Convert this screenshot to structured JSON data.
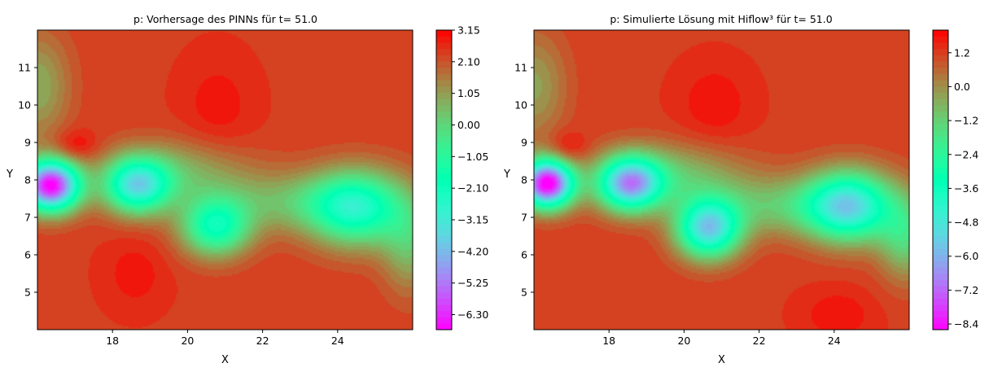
{
  "chart_data": [
    {
      "type": "heatmap",
      "title": "p: Vorhersage des PINNs für t= 51.0",
      "xlabel": "X",
      "ylabel": "Y",
      "xlim": [
        16.0,
        26.0
      ],
      "ylim": [
        4.0,
        12.0
      ],
      "x_ticks": [
        "18",
        "20",
        "22",
        "24"
      ],
      "x_tick_values": [
        18,
        20,
        22,
        24
      ],
      "y_ticks": [
        "5",
        "6",
        "7",
        "8",
        "9",
        "10",
        "11"
      ],
      "y_tick_values": [
        5,
        6,
        7,
        8,
        9,
        10,
        11
      ],
      "colormap": "rainbow",
      "colorbar": {
        "vmin": -6.8,
        "vmax": 3.15,
        "ticks": [
          "3.15",
          "2.10",
          "1.05",
          "0.00",
          "−1.05",
          "−2.10",
          "−3.15",
          "−4.20",
          "−5.25",
          "−6.30"
        ],
        "tick_values": [
          3.15,
          2.1,
          1.05,
          0.0,
          -1.05,
          -2.1,
          -3.15,
          -4.2,
          -5.25,
          -6.3
        ]
      },
      "background_value": 2.4,
      "features": [
        {
          "x": 16.35,
          "y": 7.85,
          "sx": 0.55,
          "sy": 0.48,
          "amp": -9.2
        },
        {
          "x": 18.65,
          "y": 7.85,
          "sx": 0.62,
          "sy": 0.52,
          "amp": -5.4
        },
        {
          "x": 20.75,
          "y": 6.75,
          "sx": 0.65,
          "sy": 0.55,
          "amp": -4.2
        },
        {
          "x": 24.5,
          "y": 7.25,
          "sx": 0.9,
          "sy": 0.7,
          "amp": -4.5
        },
        {
          "x": 25.9,
          "y": 6.3,
          "sx": 0.5,
          "sy": 0.9,
          "amp": -1.8
        },
        {
          "x": 16.0,
          "y": 10.5,
          "sx": 0.6,
          "sy": 1.0,
          "amp": -1.6
        },
        {
          "x": 17.0,
          "y": 8.9,
          "sx": 0.4,
          "sy": 0.3,
          "amp": 0.9
        },
        {
          "x": 20.8,
          "y": 9.9,
          "sx": 0.7,
          "sy": 1.0,
          "amp": 0.5
        },
        {
          "x": 18.6,
          "y": 5.5,
          "sx": 0.6,
          "sy": 0.7,
          "amp": 0.5
        },
        {
          "x": 19.8,
          "y": 8.2,
          "sx": 1.3,
          "sy": 0.6,
          "amp": -1.6
        },
        {
          "x": 22.7,
          "y": 7.4,
          "sx": 1.5,
          "sy": 0.55,
          "amp": -1.6
        }
      ]
    },
    {
      "type": "heatmap",
      "title": "p: Simulierte Lösung mit Hiflow³ für t= 51.0",
      "xlabel": "X",
      "ylabel": "Y",
      "xlim": [
        16.0,
        26.0
      ],
      "ylim": [
        4.0,
        12.0
      ],
      "x_ticks": [
        "18",
        "20",
        "22",
        "24"
      ],
      "x_tick_values": [
        18,
        20,
        22,
        24
      ],
      "y_ticks": [
        "5",
        "6",
        "7",
        "8",
        "9",
        "10",
        "11"
      ],
      "y_tick_values": [
        5,
        6,
        7,
        8,
        9,
        10,
        11
      ],
      "colormap": "rainbow",
      "colorbar": {
        "vmin": -8.6,
        "vmax": 2.0,
        "ticks": [
          "1.2",
          "0.0",
          "−1.2",
          "−2.4",
          "−3.6",
          "−4.8",
          "−6.0",
          "−7.2",
          "−8.4"
        ],
        "tick_values": [
          1.2,
          0.0,
          -1.2,
          -2.4,
          -3.6,
          -4.8,
          -6.0,
          -7.2,
          -8.4
        ]
      },
      "background_value": 1.2,
      "features": [
        {
          "x": 16.35,
          "y": 7.9,
          "sx": 0.5,
          "sy": 0.45,
          "amp": -10.0
        },
        {
          "x": 18.55,
          "y": 7.9,
          "sx": 0.6,
          "sy": 0.5,
          "amp": -7.0
        },
        {
          "x": 20.65,
          "y": 6.7,
          "sx": 0.6,
          "sy": 0.55,
          "amp": -6.5
        },
        {
          "x": 24.4,
          "y": 7.3,
          "sx": 0.8,
          "sy": 0.65,
          "amp": -6.0
        },
        {
          "x": 25.9,
          "y": 6.5,
          "sx": 0.5,
          "sy": 0.8,
          "amp": -2.5
        },
        {
          "x": 16.0,
          "y": 10.5,
          "sx": 0.6,
          "sy": 1.0,
          "amp": -1.5
        },
        {
          "x": 16.9,
          "y": 8.85,
          "sx": 0.35,
          "sy": 0.3,
          "amp": 0.9
        },
        {
          "x": 20.8,
          "y": 10.0,
          "sx": 0.7,
          "sy": 0.8,
          "amp": 0.6
        },
        {
          "x": 24.1,
          "y": 4.4,
          "sx": 0.7,
          "sy": 0.5,
          "amp": 0.6
        },
        {
          "x": 19.7,
          "y": 8.1,
          "sx": 1.3,
          "sy": 0.6,
          "amp": -2.0
        },
        {
          "x": 22.6,
          "y": 7.3,
          "sx": 1.4,
          "sy": 0.55,
          "amp": -2.0
        }
      ]
    }
  ]
}
